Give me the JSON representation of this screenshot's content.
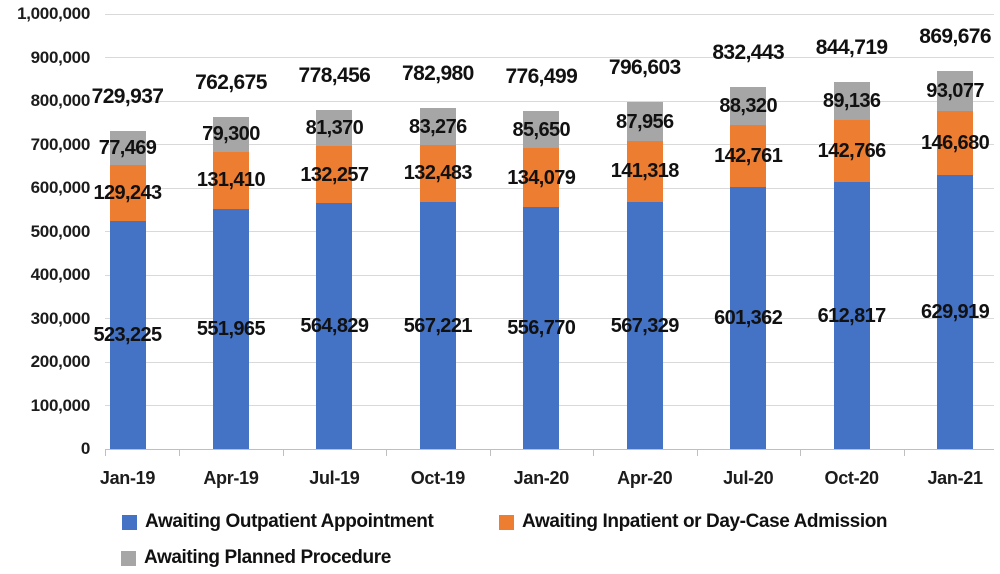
{
  "chart_data": {
    "type": "bar",
    "stacked": true,
    "title": "",
    "xlabel": "",
    "ylabel": "",
    "grid": true,
    "legend_position": "bottom",
    "categories": [
      "Jan-19",
      "Apr-19",
      "Jul-19",
      "Oct-19",
      "Jan-20",
      "Apr-20",
      "Jul-20",
      "Oct-20",
      "Jan-21"
    ],
    "series": [
      {
        "name": "Awaiting Outpatient Appointment",
        "color": "#4472C4",
        "values": [
          523225,
          551965,
          564829,
          567221,
          556770,
          567329,
          601362,
          612817,
          629919
        ],
        "labels": [
          "523,225",
          "551,965",
          "564,829",
          "567,221",
          "556,770",
          "567,329",
          "601,362",
          "612,817",
          "629,919"
        ]
      },
      {
        "name": "Awaiting Inpatient or Day-Case Admission",
        "color": "#ED7D31",
        "values": [
          129243,
          131410,
          132257,
          132483,
          134079,
          141318,
          142761,
          142766,
          146680
        ],
        "labels": [
          "129,243",
          "131,410",
          "132,257",
          "132,483",
          "134,079",
          "141,318",
          "142,761",
          "142,766",
          "146,680"
        ]
      },
      {
        "name": "Awaiting Planned Procedure",
        "color": "#A6A6A6",
        "values": [
          77469,
          79300,
          81370,
          83276,
          85650,
          87956,
          88320,
          89136,
          93077
        ],
        "labels": [
          "77,469",
          "79,300",
          "81,370",
          "83,276",
          "85,650",
          "87,956",
          "88,320",
          "89,136",
          "93,077"
        ]
      }
    ],
    "totals": {
      "values": [
        729937,
        762675,
        778456,
        782980,
        776499,
        796603,
        832443,
        844719,
        869676
      ],
      "labels": [
        "729,937",
        "762,675",
        "778,456",
        "782,980",
        "776,499",
        "796,603",
        "832,443",
        "844,719",
        "869,676"
      ]
    },
    "y_axis": {
      "min": 0,
      "max": 1000000,
      "step": 100000,
      "tick_labels": [
        "0",
        "100,000",
        "200,000",
        "300,000",
        "400,000",
        "500,000",
        "600,000",
        "700,000",
        "800,000",
        "900,000",
        "1,000,000"
      ]
    }
  },
  "colors": {
    "gridline": "#D9D9D9",
    "axis_line": "#BFBFBF",
    "text": "#111111"
  }
}
